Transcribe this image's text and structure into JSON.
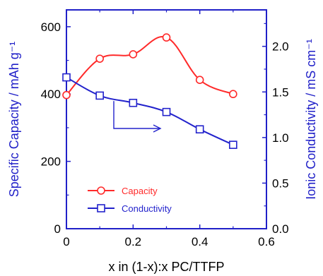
{
  "chart_data": {
    "type": "line",
    "x": [
      0,
      0.1,
      0.2,
      0.3,
      0.4,
      0.5
    ],
    "xlabel": "x in (1-x):x PC/TTFP",
    "xlim": [
      0,
      0.6
    ],
    "xticks": [
      "0",
      "0.2",
      "0.4",
      "0.6"
    ],
    "xtick_values": [
      0,
      0.2,
      0.4,
      0.6
    ],
    "y_left": {
      "label": "Specific Capacity / mAh g⁻¹",
      "lim": [
        0,
        650
      ],
      "ticks": [
        "0",
        "200",
        "400",
        "600"
      ],
      "tick_values": [
        0,
        200,
        400,
        600
      ],
      "color": "#2020c8"
    },
    "y_right": {
      "label": "Ionic Conductivity / mS cm⁻¹",
      "lim": [
        0,
        2.4
      ],
      "ticks": [
        "0.0",
        "0.5",
        "1.0",
        "1.5",
        "2.0"
      ],
      "tick_values": [
        0,
        0.5,
        1.0,
        1.5,
        2.0
      ],
      "color": "#2020c8"
    },
    "series": [
      {
        "name": "Capacity",
        "axis": "left",
        "marker": "circle",
        "color": "#ff2a2a",
        "values": [
          397,
          505,
          518,
          568,
          442,
          400
        ]
      },
      {
        "name": "Conductivity",
        "axis": "right",
        "marker": "square",
        "color": "#2222cc",
        "values": [
          1.66,
          1.46,
          1.38,
          1.28,
          1.09,
          0.92
        ]
      }
    ],
    "legend_position": "bottom-left",
    "annotation": "arrow pointing from conductivity curve to right axis",
    "grid": false
  }
}
